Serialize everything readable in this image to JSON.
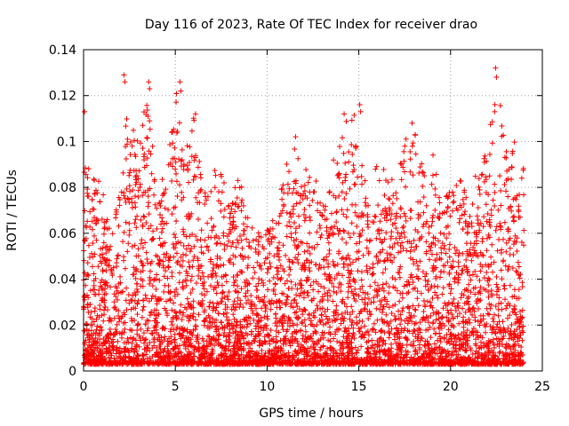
{
  "chart_data": {
    "type": "scatter",
    "title": "Day 116 of 2023, Rate Of TEC Index for receiver drao",
    "xlabel": "GPS time / hours",
    "ylabel": "ROTI / TECUs",
    "xlim": [
      0,
      25
    ],
    "ylim": [
      0,
      0.14
    ],
    "xticks": [
      0,
      5,
      10,
      15,
      20,
      25
    ],
    "yticks": [
      0,
      0.02,
      0.04,
      0.06,
      0.08,
      0.1,
      0.12,
      0.14
    ],
    "grid": true,
    "marker": "+",
    "color": "#ff0000",
    "x_range_data": [
      0,
      24
    ],
    "profile_hours": [
      0,
      0.5,
      1,
      1.5,
      2,
      2.5,
      3,
      3.5,
      4,
      4.5,
      5,
      5.5,
      6,
      6.5,
      7,
      7.5,
      8,
      8.5,
      9,
      9.5,
      10,
      10.5,
      11,
      11.5,
      12,
      12.5,
      13,
      13.5,
      14,
      14.5,
      15,
      15.5,
      16,
      16.5,
      17,
      17.5,
      18,
      18.5,
      19,
      19.5,
      20,
      20.5,
      21,
      21.5,
      22,
      22.5,
      23,
      23.5,
      24
    ],
    "profile_max_roti": [
      0.093,
      0.088,
      0.08,
      0.06,
      0.085,
      0.128,
      0.098,
      0.125,
      0.075,
      0.09,
      0.125,
      0.095,
      0.112,
      0.08,
      0.082,
      0.1,
      0.07,
      0.09,
      0.065,
      0.06,
      0.065,
      0.072,
      0.09,
      0.104,
      0.088,
      0.09,
      0.07,
      0.09,
      0.105,
      0.112,
      0.115,
      0.075,
      0.095,
      0.085,
      0.088,
      0.1,
      0.108,
      0.09,
      0.098,
      0.075,
      0.08,
      0.085,
      0.075,
      0.09,
      0.1,
      0.132,
      0.098,
      0.1,
      0.09
    ],
    "outliers": [
      {
        "x": 0.05,
        "y": 0.113
      },
      {
        "x": 2.2,
        "y": 0.129
      },
      {
        "x": 2.25,
        "y": 0.126
      },
      {
        "x": 3.55,
        "y": 0.126
      },
      {
        "x": 3.6,
        "y": 0.123
      },
      {
        "x": 5.25,
        "y": 0.126
      },
      {
        "x": 5.3,
        "y": 0.122
      },
      {
        "x": 6.1,
        "y": 0.112
      },
      {
        "x": 14.2,
        "y": 0.112
      },
      {
        "x": 15.05,
        "y": 0.116
      },
      {
        "x": 15.1,
        "y": 0.113
      },
      {
        "x": 17.9,
        "y": 0.108
      },
      {
        "x": 22.45,
        "y": 0.132
      },
      {
        "x": 22.5,
        "y": 0.128
      },
      {
        "x": 22.4,
        "y": 0.113
      }
    ]
  }
}
